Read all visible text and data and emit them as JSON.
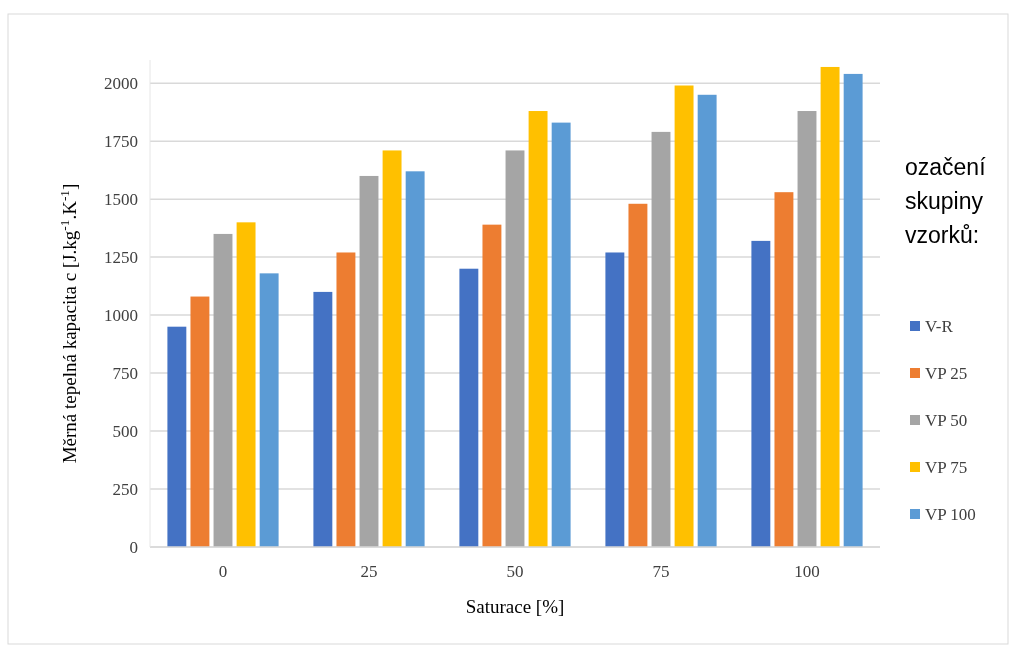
{
  "chart_data": {
    "type": "bar",
    "xlabel": "Saturace [%]",
    "ylabel": "Měrná tepelná kapacita c [J.kg$^{-1}$.K$^{-1}$]",
    "legend_title": "ozačení skupiny vzorků:",
    "categories": [
      "0",
      "25",
      "50",
      "75",
      "100"
    ],
    "series": [
      {
        "name": "V-R",
        "color": "#4472c4",
        "values": [
          950,
          1100,
          1200,
          1270,
          1320
        ]
      },
      {
        "name": "VP 25",
        "color": "#ed7d31",
        "values": [
          1080,
          1270,
          1390,
          1480,
          1530
        ]
      },
      {
        "name": "VP 50",
        "color": "#a5a5a5",
        "values": [
          1350,
          1600,
          1710,
          1790,
          1880
        ]
      },
      {
        "name": "VP 75",
        "color": "#ffc000",
        "values": [
          1400,
          1710,
          1880,
          1990,
          2070
        ]
      },
      {
        "name": "VP 100",
        "color": "#5b9bd5",
        "values": [
          1180,
          1620,
          1830,
          1950,
          2040
        ]
      }
    ],
    "ylim": [
      0,
      2100
    ],
    "yticks": [
      0,
      250,
      500,
      750,
      1000,
      1250,
      1500,
      1750,
      2000
    ],
    "grid": "y",
    "legend": "right"
  }
}
